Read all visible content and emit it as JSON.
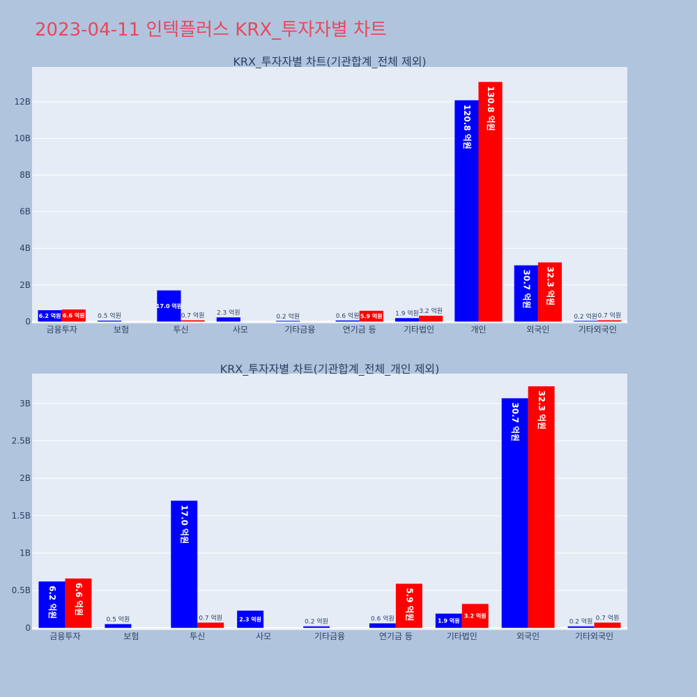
{
  "page_title": "2023-04-11 인텍플러스 KRX_투자자별 차트",
  "colors": {
    "background": "#b0c4de",
    "plot_bg": "#e5ecf6",
    "buy": "#0000ff",
    "sell": "#ff0000",
    "title": "#e8475b",
    "text": "#2a3f5f"
  },
  "chart_data": [
    {
      "type": "bar",
      "title": "KRX_투자자별 차트(기관합계_전체 제외)",
      "categories": [
        "금융투자",
        "보험",
        "투신",
        "사모",
        "기타금융",
        "연기금 등",
        "기타법인",
        "개인",
        "외국인",
        "기타외국인"
      ],
      "series": [
        {
          "values": [
            0.62,
            0.05,
            1.7,
            0.23,
            0.02,
            0.06,
            0.19,
            12.08,
            3.07,
            0.02
          ],
          "labels": [
            "6.2 억원",
            "0.5 억원",
            "17.0 억원",
            "2.3 억원",
            "0.2 억원",
            "0.6 억원",
            "1.9 억원",
            "120.8 억원",
            "30.7 억원",
            "0.2 억원"
          ]
        },
        {
          "values": [
            0.66,
            null,
            0.07,
            null,
            null,
            0.59,
            0.32,
            13.08,
            3.23,
            0.07
          ],
          "labels": [
            "6.6 억원",
            "",
            "0.7 억원",
            "",
            "",
            "5.9 억원",
            "3.2 억원",
            "130.8 억원",
            "32.3 억원",
            "0.7 억원"
          ]
        }
      ],
      "yticks": [
        "0",
        "2B",
        "4B",
        "6B",
        "8B",
        "10B",
        "12B"
      ],
      "ytick_values": [
        0,
        2,
        4,
        6,
        8,
        10,
        12
      ],
      "ylim": [
        -0.1,
        13.9
      ],
      "grid": true
    },
    {
      "type": "bar",
      "title": "KRX_투자자별 차트(기관합계_전체_개인 제외)",
      "categories": [
        "금융투자",
        "보험",
        "투신",
        "사모",
        "기타금융",
        "연기금 등",
        "기타법인",
        "외국인",
        "기타외국인"
      ],
      "series": [
        {
          "values": [
            0.62,
            0.05,
            1.7,
            0.23,
            0.02,
            0.06,
            0.19,
            3.07,
            0.02
          ],
          "labels": [
            "6.2 억원",
            "0.5 억원",
            "17.0 억원",
            "2.3 억원",
            "0.2 억원",
            "0.6 억원",
            "1.9 억원",
            "30.7 억원",
            "0.2 억원"
          ]
        },
        {
          "values": [
            0.66,
            null,
            0.07,
            null,
            null,
            0.59,
            0.32,
            3.23,
            0.07
          ],
          "labels": [
            "6.6 억원",
            "",
            "0.7 억원",
            "",
            "",
            "5.9 억원",
            "3.2 억원",
            "32.3 억원",
            "0.7 억원"
          ]
        }
      ],
      "yticks": [
        "0",
        "0.5B",
        "1B",
        "1.5B",
        "2B",
        "2.5B",
        "3B"
      ],
      "ytick_values": [
        0,
        0.5,
        1,
        1.5,
        2,
        2.5,
        3
      ],
      "ylim": [
        -0.03,
        3.4
      ],
      "grid": true
    }
  ]
}
